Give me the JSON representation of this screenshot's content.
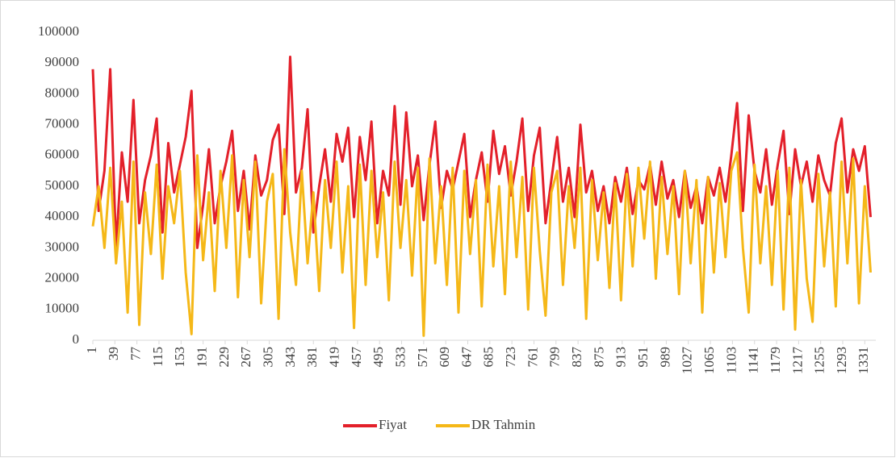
{
  "chart_data": {
    "type": "line",
    "x": [
      1,
      11,
      21,
      31,
      41,
      51,
      61,
      71,
      81,
      91,
      101,
      111,
      121,
      131,
      141,
      151,
      161,
      171,
      181,
      191,
      201,
      211,
      221,
      231,
      241,
      251,
      261,
      271,
      281,
      291,
      301,
      311,
      321,
      331,
      341,
      351,
      361,
      371,
      381,
      391,
      401,
      411,
      421,
      431,
      441,
      451,
      461,
      471,
      481,
      491,
      501,
      511,
      521,
      531,
      541,
      551,
      561,
      571,
      581,
      591,
      601,
      611,
      621,
      631,
      641,
      651,
      661,
      671,
      681,
      691,
      701,
      711,
      721,
      731,
      741,
      751,
      761,
      771,
      781,
      791,
      801,
      811,
      821,
      831,
      841,
      851,
      861,
      871,
      881,
      891,
      901,
      911,
      921,
      931,
      941,
      951,
      961,
      971,
      981,
      991,
      1001,
      1011,
      1021,
      1031,
      1041,
      1051,
      1061,
      1071,
      1081,
      1091,
      1101,
      1111,
      1121,
      1131,
      1141,
      1151,
      1161,
      1171,
      1181,
      1191,
      1201,
      1211,
      1221,
      1231,
      1241,
      1251,
      1261,
      1271,
      1281,
      1291,
      1301,
      1311,
      1321,
      1331,
      1341
    ],
    "series": [
      {
        "name": "Fiyat",
        "color": "#e3202a",
        "values": [
          88000,
          42000,
          55000,
          88000,
          30000,
          61000,
          45000,
          78000,
          38000,
          52000,
          60000,
          72000,
          35000,
          64000,
          48000,
          57000,
          66000,
          81000,
          30000,
          44000,
          62000,
          38000,
          50000,
          58000,
          68000,
          42000,
          55000,
          36000,
          60000,
          47000,
          52000,
          65000,
          70000,
          41000,
          92000,
          48000,
          56000,
          75000,
          35000,
          50000,
          62000,
          45000,
          67000,
          58000,
          69000,
          40000,
          66000,
          52000,
          71000,
          38000,
          55000,
          47000,
          76000,
          44000,
          74000,
          50000,
          60000,
          39000,
          57000,
          71000,
          43000,
          55000,
          49000,
          58000,
          67000,
          40000,
          52000,
          61000,
          45000,
          68000,
          54000,
          63000,
          47000,
          58000,
          72000,
          42000,
          60000,
          69000,
          38000,
          52000,
          66000,
          45000,
          56000,
          40000,
          70000,
          48000,
          55000,
          42000,
          50000,
          38000,
          53000,
          45000,
          56000,
          41000,
          52000,
          49000,
          57000,
          44000,
          58000,
          46000,
          52000,
          40000,
          55000,
          43000,
          50000,
          38000,
          53000,
          47000,
          56000,
          45000,
          60000,
          77000,
          42000,
          73000,
          55000,
          48000,
          62000,
          44000,
          57000,
          68000,
          41000,
          62000,
          50000,
          58000,
          45000,
          60000,
          52000,
          47000,
          64000,
          72000,
          48000,
          62000,
          55000,
          63000,
          40000
        ]
      },
      {
        "name": "DR Tahmin",
        "color": "#f5b818",
        "values": [
          37000,
          50000,
          30000,
          56000,
          25000,
          45000,
          9000,
          58000,
          5000,
          48000,
          28000,
          57000,
          20000,
          50000,
          38000,
          55000,
          22000,
          2000,
          60000,
          26000,
          48000,
          16000,
          55000,
          30000,
          60000,
          14000,
          52000,
          27000,
          58000,
          12000,
          45000,
          54000,
          7000,
          62000,
          35000,
          18000,
          55000,
          25000,
          48000,
          16000,
          52000,
          30000,
          58000,
          22000,
          50000,
          4000,
          57000,
          18000,
          55000,
          27000,
          48000,
          13000,
          58000,
          30000,
          52000,
          21000,
          56000,
          1500,
          59000,
          25000,
          50000,
          18000,
          56000,
          9000,
          55000,
          28000,
          52000,
          11000,
          57000,
          24000,
          50000,
          15000,
          58000,
          27000,
          53000,
          10000,
          56000,
          29000,
          8000,
          48000,
          55000,
          18000,
          50000,
          30000,
          56000,
          7000,
          52000,
          26000,
          48000,
          17000,
          51000,
          13000,
          54000,
          24000,
          56000,
          33000,
          58000,
          20000,
          53000,
          28000,
          50000,
          15000,
          55000,
          25000,
          52000,
          9000,
          53000,
          22000,
          51000,
          27000,
          55000,
          61000,
          30000,
          9000,
          57000,
          25000,
          50000,
          18000,
          55000,
          10000,
          56000,
          3500,
          52000,
          20000,
          6000,
          54000,
          24000,
          48000,
          11000,
          58000,
          25000,
          59000,
          12000,
          50000,
          22000
        ]
      }
    ],
    "xlim": [
      1,
      1350
    ],
    "xticks": [
      1,
      39,
      77,
      115,
      153,
      191,
      229,
      267,
      305,
      343,
      381,
      419,
      457,
      495,
      533,
      571,
      609,
      647,
      685,
      723,
      761,
      799,
      837,
      875,
      913,
      951,
      989,
      1027,
      1065,
      1103,
      1141,
      1179,
      1217,
      1255,
      1293,
      1331
    ],
    "ylim": [
      0,
      100000
    ],
    "yticks": [
      0,
      10000,
      20000,
      30000,
      40000,
      50000,
      60000,
      70000,
      80000,
      90000,
      100000
    ],
    "legend": "bottom"
  }
}
